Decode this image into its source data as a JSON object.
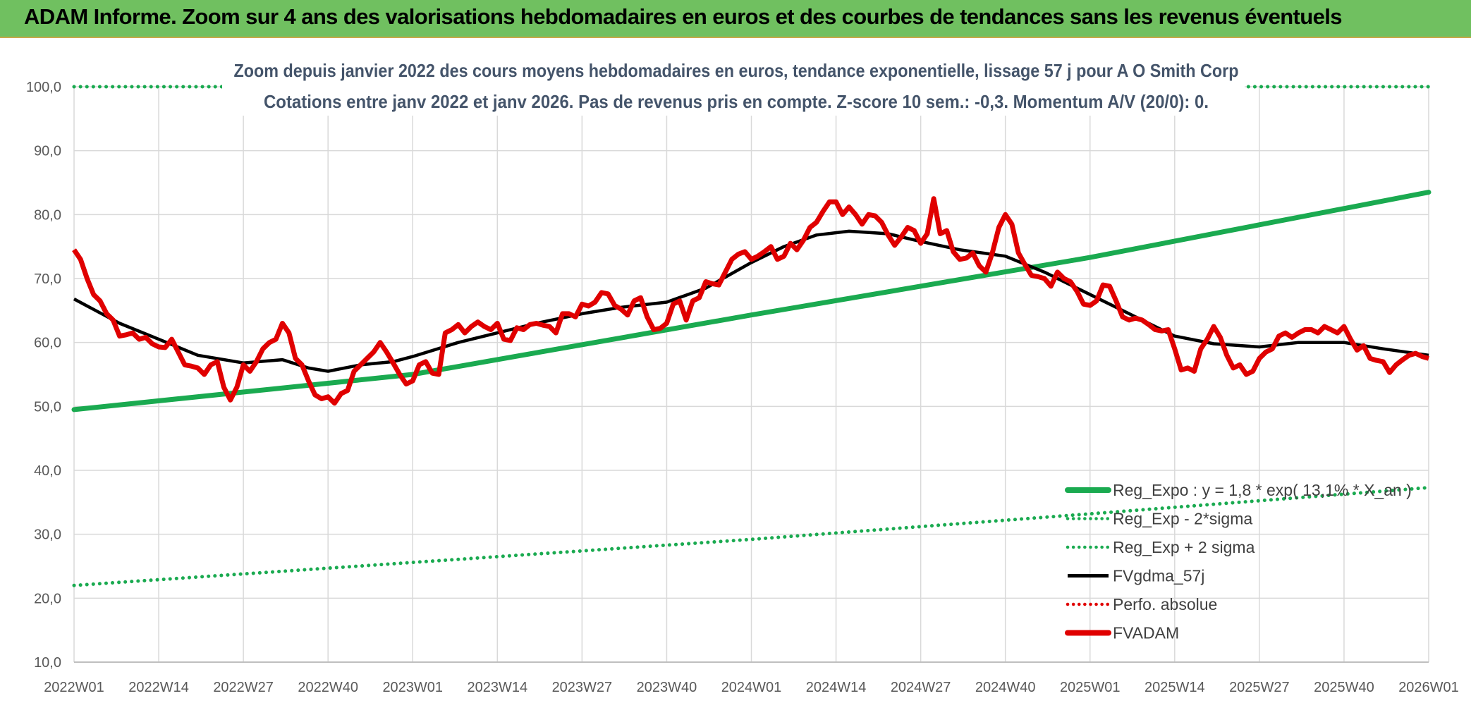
{
  "banner": {
    "title": "ADAM Informe. Zoom sur 4 ans des valorisations hebdomadaires en euros et des courbes de tendances sans les revenus éventuels"
  },
  "chart_data": {
    "type": "line",
    "title": "Zoom depuis janvier 2022 des cours moyens hebdomadaires en euros, tendance exponentielle, lissage 57 j pour A O Smith Corp",
    "subtitle": "Cotations entre janv 2022 et janv 2026. Pas de revenus pris en compte. Z-score 10 sem.: -0,3. Momentum A/V (20/0): 0.",
    "xlabel": "",
    "ylabel": "",
    "ylim": [
      10,
      100
    ],
    "yticks": [
      "10,0",
      "20,0",
      "30,0",
      "40,0",
      "50,0",
      "60,0",
      "70,0",
      "80,0",
      "90,0",
      "100,0"
    ],
    "xticks": [
      "2022W01",
      "2022W14",
      "2022W27",
      "2022W40",
      "2023W01",
      "2023W14",
      "2023W27",
      "2023W40",
      "2024W01",
      "2024W14",
      "2024W27",
      "2024W40",
      "2025W01",
      "2025W14",
      "2025W27",
      "2025W40",
      "2026W01"
    ],
    "grid": true,
    "legend_position": "bottom-right",
    "series": [
      {
        "name": "Reg_Expo : y = 1,8 * exp( 13,1% * X_an )",
        "color": "#1aaa50",
        "style": "solid",
        "points": [
          [
            "2022W01",
            49.5
          ],
          [
            "2023W01",
            55.0
          ],
          [
            "2024W01",
            64.3
          ],
          [
            "2025W01",
            73.3
          ],
          [
            "2026W01",
            83.5
          ]
        ]
      },
      {
        "name": "Reg_Exp - 2*sigma",
        "color": "#1aaa50",
        "style": "dotted",
        "points": [
          [
            "2022W01",
            22.0
          ],
          [
            "2023W01",
            25.6
          ],
          [
            "2024W01",
            29.2
          ],
          [
            "2025W01",
            33.2
          ],
          [
            "2026W01",
            37.3
          ]
        ]
      },
      {
        "name": "Reg_Exp + 2 sigma",
        "color": "#1aaa50",
        "style": "dotted",
        "points": [
          [
            "2022W01",
            100
          ],
          [
            "2026W01",
            100
          ]
        ]
      },
      {
        "name": "FVgdma_57j",
        "color": "#000000",
        "style": "solid",
        "points": [
          [
            "2022W01",
            66.8
          ],
          [
            "2022W08",
            63.0
          ],
          [
            "2022W14",
            60.5
          ],
          [
            "2022W20",
            58.0
          ],
          [
            "2022W27",
            56.8
          ],
          [
            "2022W33",
            57.3
          ],
          [
            "2022W37",
            56.0
          ],
          [
            "2022W40",
            55.5
          ],
          [
            "2022W45",
            56.5
          ],
          [
            "2022W50",
            57.0
          ],
          [
            "2023W01",
            57.8
          ],
          [
            "2023W08",
            60.0
          ],
          [
            "2023W14",
            61.5
          ],
          [
            "2023W20",
            63.0
          ],
          [
            "2023W27",
            64.5
          ],
          [
            "2023W33",
            65.5
          ],
          [
            "2023W40",
            66.3
          ],
          [
            "2023W46",
            68.5
          ],
          [
            "2024W01",
            72.5
          ],
          [
            "2024W06",
            75.0
          ],
          [
            "2024W11",
            76.8
          ],
          [
            "2024W16",
            77.4
          ],
          [
            "2024W22",
            77.0
          ],
          [
            "2024W27",
            75.8
          ],
          [
            "2024W33",
            74.5
          ],
          [
            "2024W40",
            73.5
          ],
          [
            "2024W46",
            71.0
          ],
          [
            "2025W01",
            67.5
          ],
          [
            "2025W08",
            64.0
          ],
          [
            "2025W14",
            61.0
          ],
          [
            "2025W20",
            59.8
          ],
          [
            "2025W27",
            59.3
          ],
          [
            "2025W33",
            60.0
          ],
          [
            "2025W40",
            60.0
          ],
          [
            "2025W46",
            59.0
          ],
          [
            "2026W01",
            58.0
          ]
        ]
      },
      {
        "name": "Perfo. absolue",
        "color": "#e00000",
        "style": "dotted",
        "points": []
      },
      {
        "name": "FVADAM",
        "color": "#e00000",
        "style": "solid",
        "points": [
          [
            "2022W01",
            74.5
          ],
          [
            "2022W02",
            73.0
          ],
          [
            "2022W03",
            70.0
          ],
          [
            "2022W04",
            67.5
          ],
          [
            "2022W05",
            66.5
          ],
          [
            "2022W06",
            64.5
          ],
          [
            "2022W07",
            63.5
          ],
          [
            "2022W08",
            61.0
          ],
          [
            "2022W09",
            61.2
          ],
          [
            "2022W10",
            61.5
          ],
          [
            "2022W11",
            60.5
          ],
          [
            "2022W12",
            60.8
          ],
          [
            "2022W13",
            59.8
          ],
          [
            "2022W14",
            59.3
          ],
          [
            "2022W15",
            59.2
          ],
          [
            "2022W16",
            60.5
          ],
          [
            "2022W17",
            58.5
          ],
          [
            "2022W18",
            56.5
          ],
          [
            "2022W19",
            56.3
          ],
          [
            "2022W20",
            56.0
          ],
          [
            "2022W21",
            55.0
          ],
          [
            "2022W22",
            56.5
          ],
          [
            "2022W23",
            57.0
          ],
          [
            "2022W24",
            53.0
          ],
          [
            "2022W25",
            51.0
          ],
          [
            "2022W26",
            53.0
          ],
          [
            "2022W27",
            56.5
          ],
          [
            "2022W28",
            55.5
          ],
          [
            "2022W29",
            57.0
          ],
          [
            "2022W30",
            59.0
          ],
          [
            "2022W31",
            60.0
          ],
          [
            "2022W32",
            60.5
          ],
          [
            "2022W33",
            63.0
          ],
          [
            "2022W34",
            61.5
          ],
          [
            "2022W35",
            57.5
          ],
          [
            "2022W36",
            56.5
          ],
          [
            "2022W37",
            54.0
          ],
          [
            "2022W38",
            51.8
          ],
          [
            "2022W39",
            51.2
          ],
          [
            "2022W40",
            51.5
          ],
          [
            "2022W41",
            50.5
          ],
          [
            "2022W42",
            52.0
          ],
          [
            "2022W43",
            52.5
          ],
          [
            "2022W44",
            55.5
          ],
          [
            "2022W45",
            56.5
          ],
          [
            "2022W46",
            57.5
          ],
          [
            "2022W47",
            58.5
          ],
          [
            "2022W48",
            60.0
          ],
          [
            "2022W49",
            58.5
          ],
          [
            "2022W50",
            56.8
          ],
          [
            "2022W51",
            55.0
          ],
          [
            "2022W52",
            53.5
          ],
          [
            "2023W01",
            54.0
          ],
          [
            "2023W02",
            56.5
          ],
          [
            "2023W03",
            57.0
          ],
          [
            "2023W04",
            55.2
          ],
          [
            "2023W05",
            55.0
          ],
          [
            "2023W06",
            61.5
          ],
          [
            "2023W07",
            62.0
          ],
          [
            "2023W08",
            62.8
          ],
          [
            "2023W09",
            61.5
          ],
          [
            "2023W10",
            62.5
          ],
          [
            "2023W11",
            63.2
          ],
          [
            "2023W12",
            62.5
          ],
          [
            "2023W13",
            62.0
          ],
          [
            "2023W14",
            63.0
          ],
          [
            "2023W15",
            60.5
          ],
          [
            "2023W16",
            60.3
          ],
          [
            "2023W17",
            62.3
          ],
          [
            "2023W18",
            62.0
          ],
          [
            "2023W19",
            62.8
          ],
          [
            "2023W20",
            63.0
          ],
          [
            "2023W21",
            62.7
          ],
          [
            "2023W22",
            62.5
          ],
          [
            "2023W23",
            61.5
          ],
          [
            "2023W24",
            64.5
          ],
          [
            "2023W25",
            64.5
          ],
          [
            "2023W26",
            64.0
          ],
          [
            "2023W27",
            66.0
          ],
          [
            "2023W28",
            65.7
          ],
          [
            "2023W29",
            66.3
          ],
          [
            "2023W30",
            67.8
          ],
          [
            "2023W31",
            67.6
          ],
          [
            "2023W32",
            65.8
          ],
          [
            "2023W33",
            65.2
          ],
          [
            "2023W34",
            64.3
          ],
          [
            "2023W35",
            66.5
          ],
          [
            "2023W36",
            67.0
          ],
          [
            "2023W37",
            64.0
          ],
          [
            "2023W38",
            62.0
          ],
          [
            "2023W39",
            62.2
          ],
          [
            "2023W40",
            63.0
          ],
          [
            "2023W41",
            66.0
          ],
          [
            "2023W42",
            66.5
          ],
          [
            "2023W43",
            63.5
          ],
          [
            "2023W44",
            66.5
          ],
          [
            "2023W45",
            67.0
          ],
          [
            "2023W46",
            69.5
          ],
          [
            "2023W47",
            69.2
          ],
          [
            "2023W48",
            69.0
          ],
          [
            "2023W49",
            71.0
          ],
          [
            "2023W50",
            73.0
          ],
          [
            "2023W51",
            73.8
          ],
          [
            "2023W52",
            74.2
          ],
          [
            "2024W01",
            73.0
          ],
          [
            "2024W02",
            73.5
          ],
          [
            "2024W03",
            74.2
          ],
          [
            "2024W04",
            75.0
          ],
          [
            "2024W05",
            73.0
          ],
          [
            "2024W06",
            73.5
          ],
          [
            "2024W07",
            75.5
          ],
          [
            "2024W08",
            74.5
          ],
          [
            "2024W09",
            76.0
          ],
          [
            "2024W10",
            78.0
          ],
          [
            "2024W11",
            78.8
          ],
          [
            "2024W12",
            80.5
          ],
          [
            "2024W13",
            82.0
          ],
          [
            "2024W14",
            82.0
          ],
          [
            "2024W15",
            80.0
          ],
          [
            "2024W16",
            81.2
          ],
          [
            "2024W17",
            80.0
          ],
          [
            "2024W18",
            78.5
          ],
          [
            "2024W19",
            80.0
          ],
          [
            "2024W20",
            79.8
          ],
          [
            "2024W21",
            78.8
          ],
          [
            "2024W22",
            76.8
          ],
          [
            "2024W23",
            75.2
          ],
          [
            "2024W24",
            76.5
          ],
          [
            "2024W25",
            78.0
          ],
          [
            "2024W26",
            77.5
          ],
          [
            "2024W27",
            75.5
          ],
          [
            "2024W28",
            77.0
          ],
          [
            "2024W29",
            82.5
          ],
          [
            "2024W30",
            77.0
          ],
          [
            "2024W31",
            77.5
          ],
          [
            "2024W32",
            74.2
          ],
          [
            "2024W33",
            73.0
          ],
          [
            "2024W34",
            73.2
          ],
          [
            "2024W35",
            74.0
          ],
          [
            "2024W36",
            72.0
          ],
          [
            "2024W37",
            71.0
          ],
          [
            "2024W38",
            74.0
          ],
          [
            "2024W39",
            78.0
          ],
          [
            "2024W40",
            80.0
          ],
          [
            "2024W41",
            78.5
          ],
          [
            "2024W42",
            74.0
          ],
          [
            "2024W43",
            72.2
          ],
          [
            "2024W44",
            70.5
          ],
          [
            "2024W45",
            70.3
          ],
          [
            "2024W46",
            70.0
          ],
          [
            "2024W47",
            68.8
          ],
          [
            "2024W48",
            71.0
          ],
          [
            "2024W49",
            70.0
          ],
          [
            "2024W50",
            69.5
          ],
          [
            "2024W51",
            68.0
          ],
          [
            "2024W52",
            66.0
          ],
          [
            "2025W01",
            65.8
          ],
          [
            "2025W02",
            66.5
          ],
          [
            "2025W03",
            69.0
          ],
          [
            "2025W04",
            68.8
          ],
          [
            "2025W05",
            66.5
          ],
          [
            "2025W06",
            64.0
          ],
          [
            "2025W07",
            63.5
          ],
          [
            "2025W08",
            63.8
          ],
          [
            "2025W09",
            63.5
          ],
          [
            "2025W10",
            62.8
          ],
          [
            "2025W11",
            62.0
          ],
          [
            "2025W12",
            61.8
          ],
          [
            "2025W13",
            62.0
          ],
          [
            "2025W14",
            59.0
          ],
          [
            "2025W15",
            55.7
          ],
          [
            "2025W16",
            56.0
          ],
          [
            "2025W17",
            55.5
          ],
          [
            "2025W18",
            59.0
          ],
          [
            "2025W19",
            60.5
          ],
          [
            "2025W20",
            62.5
          ],
          [
            "2025W21",
            60.8
          ],
          [
            "2025W22",
            58.0
          ],
          [
            "2025W23",
            56.0
          ],
          [
            "2025W24",
            56.5
          ],
          [
            "2025W25",
            55.0
          ],
          [
            "2025W26",
            55.5
          ],
          [
            "2025W27",
            57.5
          ],
          [
            "2025W28",
            58.5
          ],
          [
            "2025W29",
            59.0
          ],
          [
            "2025W30",
            61.0
          ],
          [
            "2025W31",
            61.5
          ],
          [
            "2025W32",
            60.8
          ],
          [
            "2025W33",
            61.5
          ],
          [
            "2025W34",
            62.0
          ],
          [
            "2025W35",
            62.0
          ],
          [
            "2025W36",
            61.5
          ],
          [
            "2025W37",
            62.5
          ],
          [
            "2025W38",
            62.0
          ],
          [
            "2025W39",
            61.5
          ],
          [
            "2025W40",
            62.5
          ],
          [
            "2025W41",
            60.5
          ],
          [
            "2025W42",
            58.8
          ],
          [
            "2025W43",
            59.5
          ],
          [
            "2025W44",
            57.5
          ],
          [
            "2025W45",
            57.2
          ],
          [
            "2025W46",
            57.0
          ],
          [
            "2025W47",
            55.3
          ],
          [
            "2025W48",
            56.5
          ],
          [
            "2025W49",
            57.3
          ],
          [
            "2025W50",
            58.0
          ],
          [
            "2025W51",
            58.3
          ],
          [
            "2025W52",
            57.8
          ],
          [
            "2026W01",
            57.5
          ]
        ]
      }
    ]
  }
}
